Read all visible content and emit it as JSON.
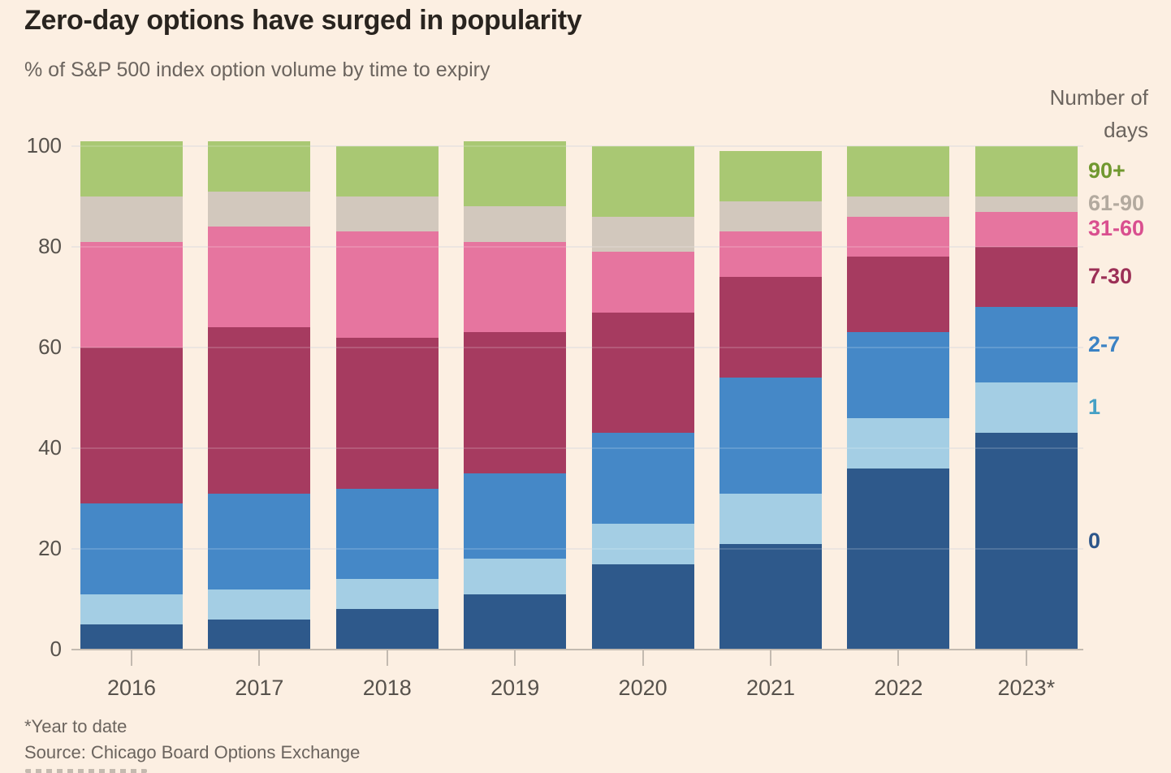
{
  "title": "Zero-day options have surged in popularity",
  "subtitle": "% of S&P 500 index option volume by time to expiry",
  "legend_header": "Number of days",
  "footnote": "*Year to date",
  "source": "Source: Chicago Board Options Exchange",
  "colors": {
    "background": "#fcefe2",
    "title_text": "#29241f",
    "muted_text": "#6b645e",
    "axis_text": "#57524c",
    "axis_line": "#c3bab0",
    "gridline": "#e9e0da"
  },
  "chart_data": {
    "type": "bar",
    "stacked": true,
    "title": "Zero-day options have surged in popularity",
    "subtitle": "% of S&P 500 index option volume by time to expiry",
    "xlabel": "",
    "ylabel": "% of S&P 500 index option volume",
    "categories": [
      "2016",
      "2017",
      "2018",
      "2019",
      "2020",
      "2021",
      "2022",
      "2023*"
    ],
    "series": [
      {
        "name": "0",
        "color": "#2e598b",
        "label_color": "#2d568a",
        "values": [
          5,
          6,
          8,
          11,
          17,
          21,
          36,
          43
        ]
      },
      {
        "name": "1",
        "color": "#a4cee4",
        "label_color": "#45a0c5",
        "values": [
          6,
          6,
          6,
          7,
          8,
          10,
          10,
          10
        ]
      },
      {
        "name": "2-7",
        "color": "#4588c7",
        "label_color": "#3b82c4",
        "values": [
          18,
          19,
          18,
          17,
          18,
          23,
          17,
          15
        ]
      },
      {
        "name": "7-30",
        "color": "#a63b60",
        "label_color": "#9c2f56",
        "values": [
          31,
          33,
          30,
          28,
          24,
          20,
          15,
          12
        ]
      },
      {
        "name": "31-60",
        "color": "#e6759f",
        "label_color": "#d94f8f",
        "values": [
          21,
          20,
          21,
          18,
          12,
          9,
          8,
          7
        ]
      },
      {
        "name": "61-90",
        "color": "#d2c8bd",
        "label_color": "#b3aa9f",
        "values": [
          9,
          7,
          7,
          7,
          7,
          6,
          4,
          3
        ]
      },
      {
        "name": "90+",
        "color": "#a9c873",
        "label_color": "#70982f",
        "values": [
          11,
          10,
          10,
          13,
          14,
          10,
          10,
          10
        ]
      }
    ],
    "totals": [
      101,
      101,
      100,
      101,
      100,
      99,
      100,
      100
    ],
    "yticks": [
      0,
      20,
      40,
      60,
      80,
      100
    ],
    "ylim": [
      0,
      101
    ],
    "gridlines": true,
    "legend_position": "right",
    "legend_title": "Number of days"
  }
}
